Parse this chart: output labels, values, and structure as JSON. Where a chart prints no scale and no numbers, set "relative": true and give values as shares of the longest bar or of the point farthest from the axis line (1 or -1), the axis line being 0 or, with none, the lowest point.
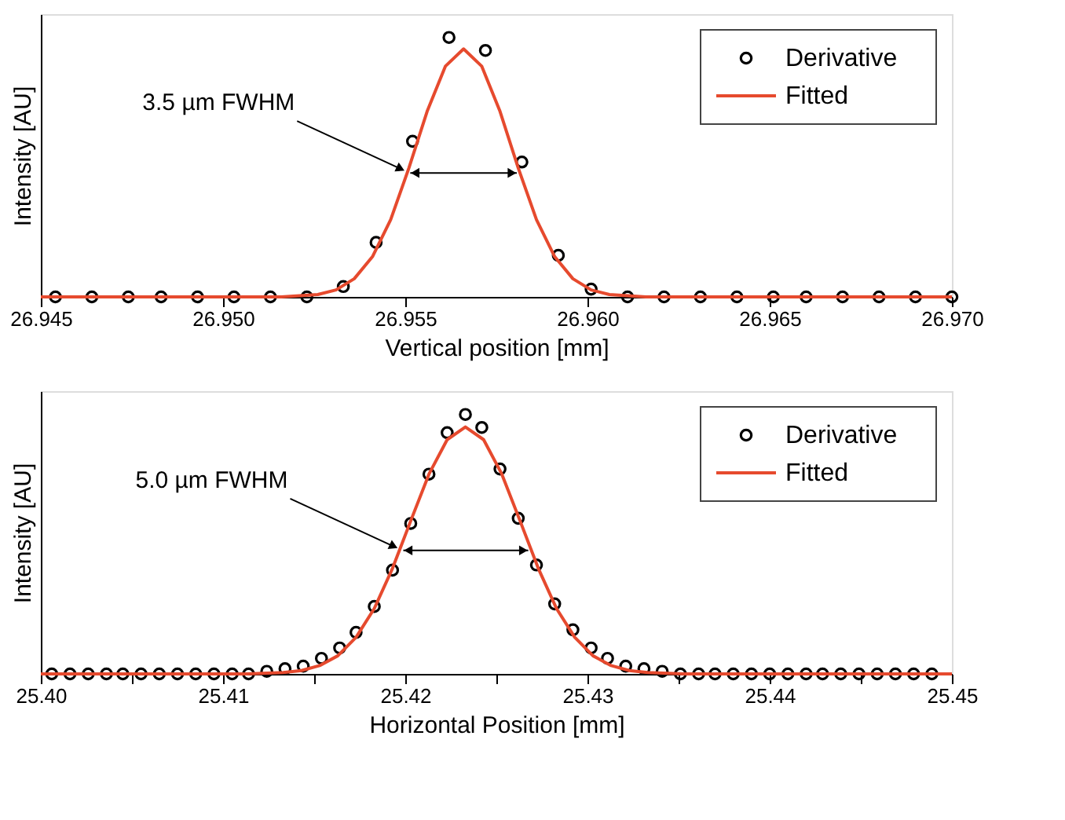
{
  "chart_data": [
    {
      "type": "scatter",
      "xlabel": "Vertical position [mm]",
      "ylabel": "Intensity [AU]",
      "relative": true,
      "tick_labels": "x",
      "legend": "top right",
      "marker": "circle",
      "xlim": [
        26.945,
        26.97
      ],
      "xticks": [
        26.945,
        {
          "value": 26.95,
          "label": "26.950"
        },
        26.955,
        {
          "value": 26.96,
          "label": "26.960"
        },
        26.965,
        {
          "value": 26.97,
          "label": "26.970"
        }
      ],
      "series": [
        {
          "name": "Derivative",
          "color": "#000000",
          "x": [
            26.9454,
            26.9464,
            26.9474,
            26.9483,
            26.9493,
            26.9503,
            26.9513,
            26.9523,
            26.9533,
            26.9542,
            26.9552,
            26.9562,
            26.9572,
            26.9582,
            26.9592,
            26.9601,
            26.9611,
            26.9621,
            26.9631,
            26.9641,
            26.9651,
            26.966,
            26.967,
            26.968,
            26.969,
            26.97
          ],
          "values": [
            0,
            0,
            0,
            0,
            0,
            0,
            0,
            0,
            0.04,
            0.21,
            0.6,
            1.0,
            0.95,
            0.52,
            0.16,
            0.03,
            0,
            0,
            0,
            0,
            0,
            0,
            0,
            0,
            0,
            0
          ]
        },
        {
          "name": "Fitted",
          "type": "line",
          "color": "#e64a2e",
          "line_style": "solid",
          "marker": "none",
          "x": [
            26.945,
            26.9516,
            26.9526,
            26.9531,
            26.9536,
            26.9541,
            26.9546,
            26.9551,
            26.9556,
            26.9561,
            26.9566,
            26.9571,
            26.9576,
            26.9581,
            26.9586,
            26.9591,
            26.9596,
            26.9601,
            26.9606,
            26.9616,
            26.97
          ],
          "values": [
            0,
            0,
            0.009,
            0.027,
            0.07,
            0.155,
            0.298,
            0.497,
            0.715,
            0.889,
            0.956,
            0.889,
            0.715,
            0.497,
            0.298,
            0.155,
            0.07,
            0.027,
            0.009,
            0,
            0
          ]
        }
      ],
      "annotations": [
        {
          "text": "3.5 µm FWHM",
          "x": 26.95505,
          "y": 0.478
        }
      ]
    },
    {
      "type": "scatter",
      "xlabel": "Horizontal Position [mm]",
      "ylabel": "Intensity [AU]",
      "relative": true,
      "tick_labels": "x",
      "legend": "top right",
      "marker": "circle",
      "xlim": [
        25.4,
        25.45
      ],
      "xticks": [
        {
          "value": 25.4,
          "label": "25.40"
        },
        {
          "value": 25.405,
          "label": null
        },
        25.41,
        {
          "value": 25.415,
          "label": null
        },
        25.42,
        {
          "value": 25.425,
          "label": null
        },
        25.43,
        {
          "value": 25.435,
          "label": null
        },
        25.44,
        {
          "value": 25.445,
          "label": null
        },
        25.45
      ],
      "series": [
        {
          "name": "Derivative",
          "color": "#000000",
          "x": [
            25.4006,
            25.4016,
            25.4026,
            25.4036,
            25.4045,
            25.4055,
            25.4065,
            25.4075,
            25.4085,
            25.4095,
            25.4105,
            25.4114,
            25.4124,
            25.4134,
            25.4144,
            25.4154,
            25.4164,
            25.4173,
            25.4183,
            25.4193,
            25.4203,
            25.4213,
            25.4223,
            25.4233,
            25.4242,
            25.4252,
            25.4262,
            25.4272,
            25.4282,
            25.4292,
            25.4302,
            25.4311,
            25.4321,
            25.4331,
            25.4341,
            25.4351,
            25.4361,
            25.437,
            25.438,
            25.439,
            25.44,
            25.441,
            25.442,
            25.4429,
            25.4439,
            25.4449,
            25.4459,
            25.4469,
            25.4479,
            25.4489
          ],
          "values": [
            0,
            0,
            0,
            0,
            0,
            0,
            0,
            0,
            0,
            0,
            0,
            0,
            0.01,
            0.02,
            0.03,
            0.06,
            0.1,
            0.16,
            0.26,
            0.4,
            0.58,
            0.77,
            0.93,
            1.0,
            0.95,
            0.79,
            0.6,
            0.42,
            0.27,
            0.17,
            0.1,
            0.06,
            0.03,
            0.02,
            0.01,
            0,
            0,
            0,
            0,
            0,
            0,
            0,
            0,
            0,
            0,
            0,
            0,
            0,
            0,
            0
          ]
        },
        {
          "name": "Fitted",
          "type": "line",
          "color": "#e64a2e",
          "line_style": "solid",
          "marker": "none",
          "x": [
            25.4,
            25.4113,
            25.4133,
            25.4143,
            25.4153,
            25.4163,
            25.4173,
            25.4183,
            25.4193,
            25.4203,
            25.4213,
            25.4223,
            25.4233,
            25.4243,
            25.4253,
            25.4263,
            25.4273,
            25.4283,
            25.4293,
            25.4303,
            25.4313,
            25.4323,
            25.4333,
            25.4353,
            25.45
          ],
          "values": [
            0,
            0,
            0.005,
            0.013,
            0.032,
            0.07,
            0.141,
            0.252,
            0.407,
            0.59,
            0.77,
            0.903,
            0.952,
            0.903,
            0.77,
            0.59,
            0.407,
            0.252,
            0.141,
            0.07,
            0.032,
            0.013,
            0.005,
            0,
            0
          ]
        }
      ],
      "annotations": [
        {
          "text": "5.0 µm FWHM",
          "x": 25.41972,
          "y": 0.476
        }
      ]
    }
  ]
}
